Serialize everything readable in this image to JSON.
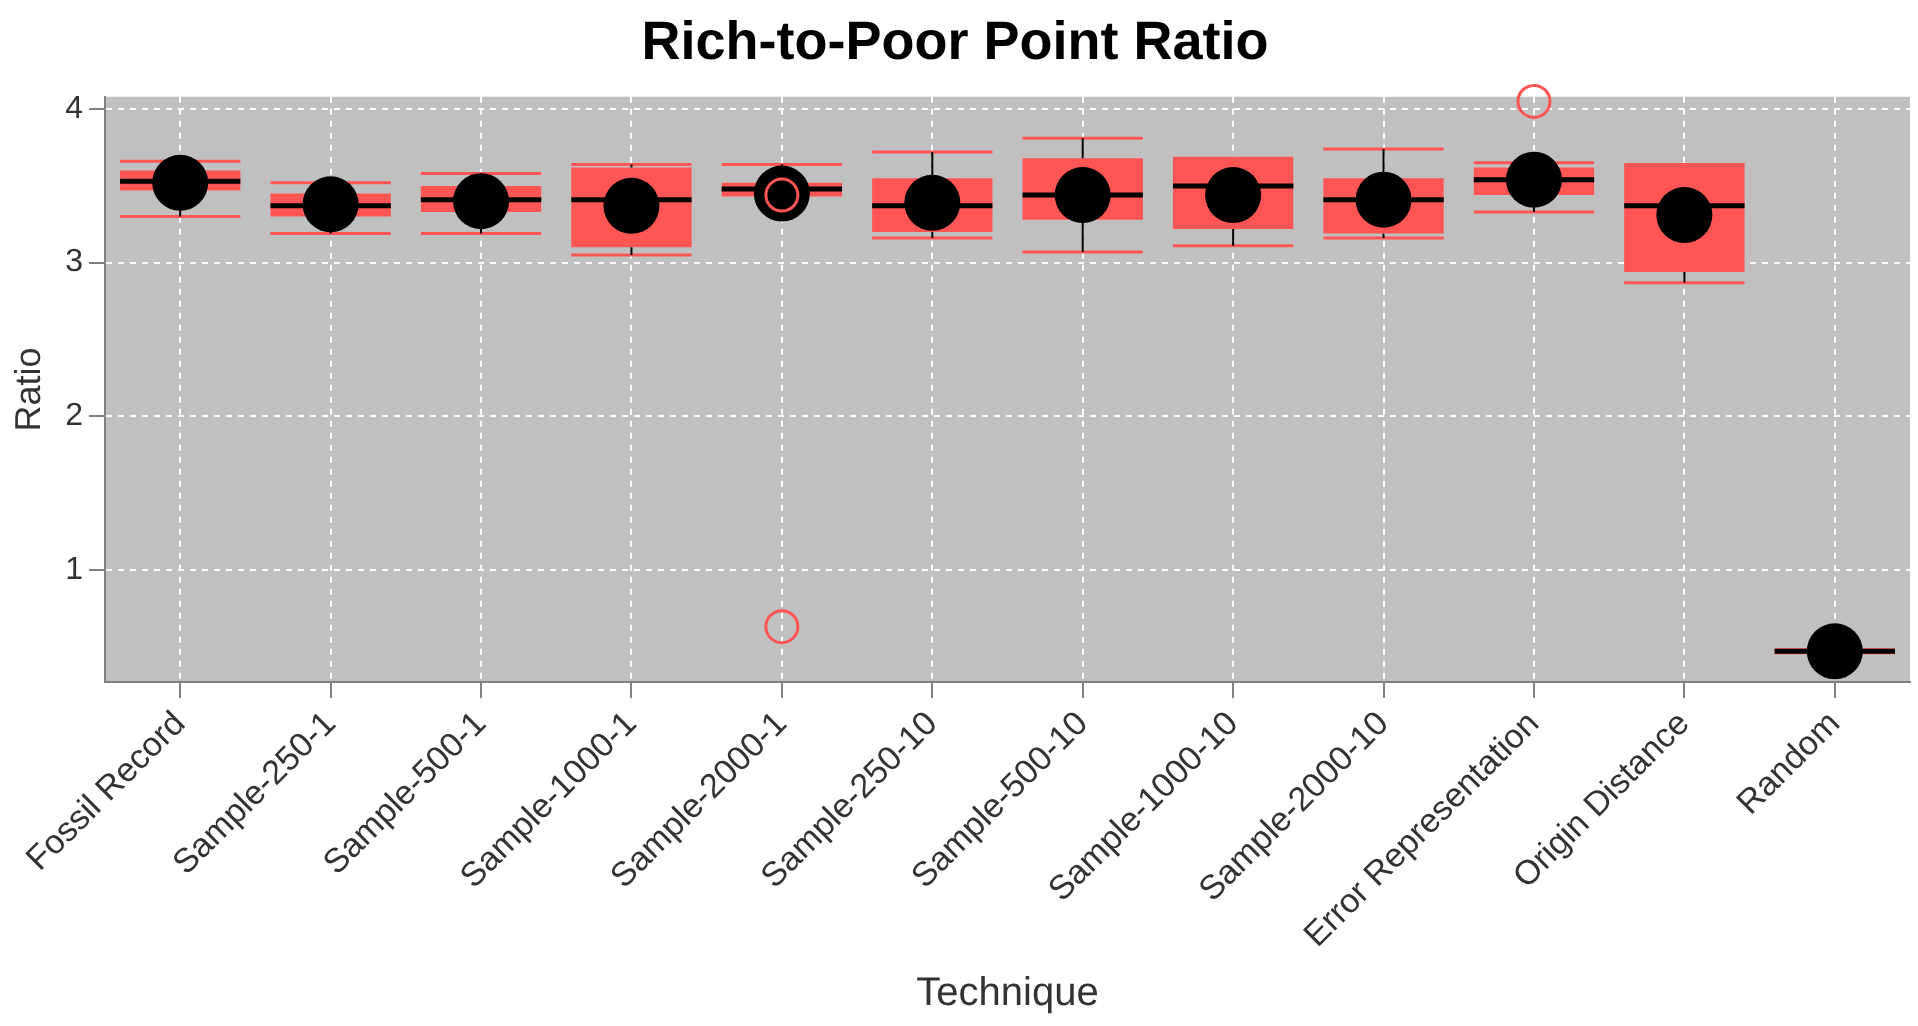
{
  "chart_data": {
    "type": "box",
    "title": "Rich-to-Poor Point Ratio",
    "xlabel": "Technique",
    "ylabel": "Ratio",
    "categories": [
      "Fossil Record",
      "Sample-250-1",
      "Sample-500-1",
      "Sample-1000-1",
      "Sample-2000-1",
      "Sample-250-10",
      "Sample-500-10",
      "Sample-1000-10",
      "Sample-2000-10",
      "Error Representation",
      "Origin Distance",
      "Random"
    ],
    "color": "#ff5555",
    "boxes": [
      {
        "low": 3.3,
        "q1": 3.47,
        "median": 3.53,
        "q3": 3.6,
        "high": 3.66,
        "mean": 3.52
      },
      {
        "low": 3.19,
        "q1": 3.3,
        "median": 3.37,
        "q3": 3.45,
        "high": 3.52,
        "mean": 3.38
      },
      {
        "low": 3.19,
        "q1": 3.33,
        "median": 3.41,
        "q3": 3.5,
        "high": 3.58,
        "mean": 3.4
      },
      {
        "low": 3.05,
        "q1": 3.1,
        "median": 3.41,
        "q3": 3.62,
        "high": 3.64,
        "mean": 3.37
      },
      {
        "low": 3.44,
        "q1": 3.44,
        "median": 3.48,
        "q3": 3.52,
        "high": 3.64,
        "mean": 3.45,
        "outliers": [
          3.44,
          0.63
        ]
      },
      {
        "low": 3.16,
        "q1": 3.2,
        "median": 3.37,
        "q3": 3.55,
        "high": 3.72,
        "mean": 3.39
      },
      {
        "low": 3.07,
        "q1": 3.28,
        "median": 3.44,
        "q3": 3.68,
        "high": 3.81,
        "mean": 3.44
      },
      {
        "low": 3.11,
        "q1": 3.22,
        "median": 3.5,
        "q3": 3.68,
        "high": 3.68,
        "mean": 3.44
      },
      {
        "low": 3.16,
        "q1": 3.19,
        "median": 3.41,
        "q3": 3.55,
        "high": 3.74,
        "mean": 3.41
      },
      {
        "low": 3.33,
        "q1": 3.44,
        "median": 3.54,
        "q3": 3.62,
        "high": 3.65,
        "mean": 3.54,
        "outliers": [
          4.05
        ]
      },
      {
        "low": 2.87,
        "q1": 2.94,
        "median": 3.37,
        "q3": 3.64,
        "high": 3.64,
        "mean": 3.31
      },
      {
        "low": 0.46,
        "q1": 0.47,
        "median": 0.47,
        "q3": 0.47,
        "high": 0.48,
        "mean": 0.47
      }
    ],
    "ylim": [
      0.27,
      4.08
    ],
    "yticks": [
      1,
      2,
      3,
      4
    ],
    "grid": true,
    "legend": false
  }
}
